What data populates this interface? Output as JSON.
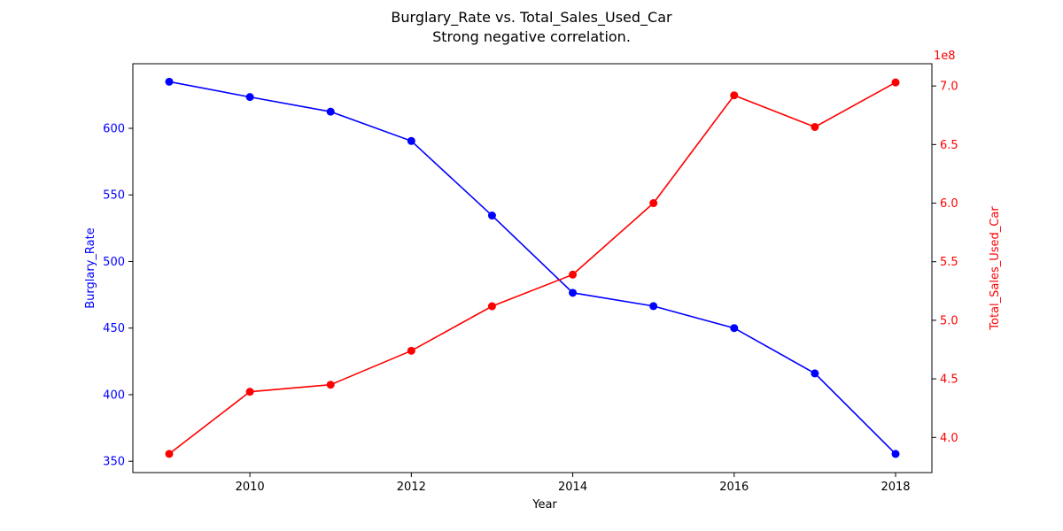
{
  "chart_data": {
    "type": "line",
    "title": "Burglary_Rate vs. Total_Sales_Used_Car",
    "subtitle": "Strong negative correlation.",
    "xlabel": "Year",
    "x": [
      2009,
      2010,
      2011,
      2012,
      2013,
      2014,
      2015,
      2016,
      2017,
      2018
    ],
    "xlim": [
      2008.55,
      2018.45
    ],
    "xticks": [
      "2010",
      "2012",
      "2014",
      "2016",
      "2018"
    ],
    "series": [
      {
        "name": "Burglary_Rate",
        "axis": "left",
        "color": "#0000ff",
        "values": [
          635,
          623.5,
          612.5,
          590.5,
          534.5,
          476.5,
          466.5,
          450,
          416,
          355.5
        ]
      },
      {
        "name": "Total_Sales_Used_Car",
        "axis": "right",
        "color": "#ff0000",
        "values": [
          386000000,
          439000000,
          445000000,
          474000000,
          512000000,
          539000000,
          600000000,
          692000000,
          665000000,
          703000000
        ]
      }
    ],
    "ylabel_left": "Burglary_Rate",
    "ylim_left": [
      341.5,
      648.5
    ],
    "yticks_left": [
      "350",
      "400",
      "450",
      "500",
      "550",
      "600"
    ],
    "ylabel_right": "Total_Sales_Used_Car",
    "ylim_right": [
      370000000,
      719000000
    ],
    "yticks_right": [
      "4.0",
      "4.5",
      "5.0",
      "5.5",
      "6.0",
      "6.5",
      "7.0"
    ],
    "right_offset_label": "1e8",
    "grid": false,
    "legend": "none"
  }
}
